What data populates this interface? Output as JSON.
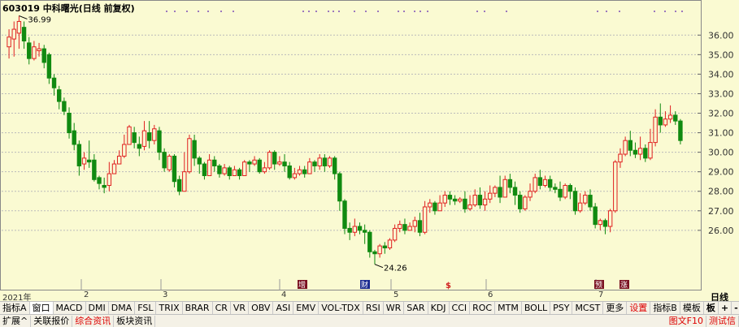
{
  "title": "603019 中科曙光(日线 前复权)",
  "chart_data": {
    "type": "candlestick",
    "y_ticks": [
      "36.00",
      "35.00",
      "34.00",
      "33.00",
      "32.00",
      "31.00",
      "30.00",
      "29.00",
      "28.00",
      "27.00",
      "26.00"
    ],
    "ylim": [
      23.5,
      37.3
    ],
    "high_label": "36.99",
    "low_label": "24.26",
    "months": [
      "2021年",
      "2",
      "3",
      "4",
      "5",
      "6",
      "7"
    ],
    "markers": [
      "增",
      "财",
      "$",
      "预",
      "涨"
    ],
    "candles": [
      [
        35.4,
        35.9,
        34.8,
        36.3
      ],
      [
        35.8,
        36.3,
        34.9,
        36.7
      ],
      [
        36.1,
        36.7,
        35.3,
        36.99
      ],
      [
        36.4,
        35.7,
        35.3,
        36.7
      ],
      [
        35.6,
        34.8,
        34.5,
        35.9
      ],
      [
        34.8,
        35.4,
        34.7,
        35.7
      ],
      [
        35.2,
        35.3,
        34.9,
        35.6
      ],
      [
        35.3,
        34.6,
        34.3,
        35.5
      ],
      [
        35.0,
        33.8,
        33.5,
        35.1
      ],
      [
        33.8,
        33.3,
        32.9,
        34.0
      ],
      [
        33.2,
        32.6,
        32.2,
        33.4
      ],
      [
        32.6,
        32.1,
        31.9,
        32.8
      ],
      [
        32.0,
        31.0,
        30.7,
        32.3
      ],
      [
        31.1,
        30.4,
        30.1,
        31.5
      ],
      [
        30.4,
        29.3,
        28.8,
        30.6
      ],
      [
        29.4,
        29.7,
        29.1,
        30.0
      ],
      [
        29.6,
        29.5,
        29.2,
        30.6
      ],
      [
        29.6,
        28.6,
        28.5,
        29.9
      ],
      [
        28.7,
        28.4,
        28.1,
        28.8
      ],
      [
        28.3,
        28.2,
        27.9,
        28.7
      ],
      [
        28.3,
        28.9,
        28.0,
        29.5
      ],
      [
        28.9,
        29.4,
        28.9,
        29.6
      ],
      [
        29.4,
        29.8,
        29.4,
        30.1
      ],
      [
        29.8,
        30.4,
        29.7,
        30.9
      ],
      [
        30.4,
        31.3,
        30.4,
        31.4
      ],
      [
        31.0,
        30.5,
        30.2,
        31.3
      ],
      [
        30.4,
        30.2,
        29.8,
        30.8
      ],
      [
        30.3,
        31.1,
        30.1,
        31.6
      ],
      [
        31.0,
        30.6,
        30.2,
        31.6
      ],
      [
        30.6,
        31.2,
        30.4,
        31.4
      ],
      [
        31.1,
        30.0,
        29.6,
        31.3
      ],
      [
        30.0,
        29.2,
        29.0,
        30.2
      ],
      [
        29.1,
        29.8,
        29.0,
        29.9
      ],
      [
        29.8,
        28.5,
        28.2,
        29.9
      ],
      [
        28.6,
        28.0,
        27.8,
        28.8
      ],
      [
        28.0,
        29.0,
        28.0,
        30.0
      ],
      [
        29.0,
        30.7,
        28.9,
        30.9
      ],
      [
        30.6,
        29.7,
        29.3,
        30.9
      ],
      [
        29.7,
        29.4,
        28.9,
        29.8
      ],
      [
        29.4,
        28.8,
        28.6,
        29.5
      ],
      [
        28.8,
        29.6,
        28.8,
        29.9
      ],
      [
        29.6,
        29.3,
        29.0,
        29.8
      ],
      [
        29.3,
        28.9,
        28.7,
        29.4
      ],
      [
        28.9,
        29.2,
        28.8,
        29.4
      ],
      [
        29.2,
        28.8,
        28.6,
        29.3
      ],
      [
        28.8,
        29.1,
        28.8,
        29.3
      ],
      [
        29.1,
        28.8,
        28.6,
        29.2
      ],
      [
        28.8,
        29.5,
        28.8,
        29.6
      ],
      [
        29.5,
        29.4,
        29.0,
        29.6
      ],
      [
        29.4,
        29.6,
        29.3,
        29.8
      ],
      [
        29.6,
        29.0,
        28.9,
        29.7
      ],
      [
        29.0,
        29.2,
        28.9,
        29.5
      ],
      [
        29.2,
        30.0,
        29.1,
        30.1
      ],
      [
        30.0,
        29.4,
        29.1,
        30.1
      ],
      [
        29.4,
        29.5,
        29.3,
        29.8
      ],
      [
        29.5,
        29.3,
        29.0,
        29.9
      ],
      [
        29.3,
        28.7,
        28.6,
        29.5
      ],
      [
        28.7,
        28.9,
        28.6,
        29.2
      ],
      [
        28.9,
        29.1,
        28.8,
        29.3
      ],
      [
        29.1,
        28.9,
        28.7,
        29.3
      ],
      [
        28.9,
        29.5,
        28.9,
        29.7
      ],
      [
        29.5,
        29.3,
        29.0,
        29.6
      ],
      [
        29.3,
        29.7,
        29.1,
        29.9
      ],
      [
        29.7,
        29.3,
        29.0,
        29.9
      ],
      [
        29.3,
        29.7,
        29.2,
        29.8
      ],
      [
        29.7,
        28.9,
        28.6,
        29.8
      ],
      [
        28.9,
        27.5,
        27.0,
        29.0
      ],
      [
        27.5,
        26.1,
        25.8,
        27.6
      ],
      [
        26.1,
        25.9,
        25.5,
        26.4
      ],
      [
        25.9,
        26.2,
        25.7,
        26.6
      ],
      [
        26.2,
        26.0,
        25.8,
        26.4
      ],
      [
        26.0,
        25.9,
        25.3,
        26.3
      ],
      [
        25.9,
        24.9,
        24.6,
        26.0
      ],
      [
        24.9,
        24.8,
        24.26,
        25.0
      ],
      [
        24.8,
        25.2,
        24.6,
        25.3
      ],
      [
        25.2,
        25.1,
        24.8,
        25.4
      ],
      [
        25.1,
        25.5,
        25.0,
        25.6
      ],
      [
        25.5,
        26.1,
        25.4,
        26.3
      ],
      [
        26.1,
        26.3,
        25.9,
        26.5
      ],
      [
        26.3,
        26.0,
        25.8,
        26.6
      ],
      [
        26.0,
        26.2,
        26.0,
        26.4
      ],
      [
        26.2,
        26.5,
        25.9,
        26.7
      ],
      [
        26.5,
        25.9,
        25.7,
        26.9
      ],
      [
        25.9,
        27.2,
        25.8,
        27.5
      ],
      [
        27.2,
        27.4,
        26.9,
        27.6
      ],
      [
        27.4,
        27.0,
        26.8,
        27.5
      ],
      [
        27.0,
        27.4,
        27.0,
        27.8
      ],
      [
        27.4,
        27.8,
        27.2,
        28.0
      ],
      [
        27.8,
        27.6,
        27.3,
        28.0
      ],
      [
        27.6,
        27.5,
        27.3,
        27.8
      ],
      [
        27.5,
        27.6,
        27.4,
        27.7
      ],
      [
        27.6,
        27.1,
        26.9,
        28.0
      ],
      [
        27.1,
        27.3,
        27.0,
        27.8
      ],
      [
        27.3,
        27.8,
        27.2,
        28.1
      ],
      [
        27.8,
        27.3,
        27.1,
        28.2
      ],
      [
        27.3,
        27.6,
        27.0,
        28.0
      ],
      [
        27.6,
        27.9,
        27.4,
        28.3
      ],
      [
        27.9,
        28.2,
        27.7,
        28.3
      ],
      [
        28.2,
        27.7,
        27.4,
        28.8
      ],
      [
        27.7,
        28.6,
        27.7,
        28.8
      ],
      [
        28.6,
        28.2,
        27.9,
        28.9
      ],
      [
        28.2,
        27.8,
        27.3,
        28.5
      ],
      [
        27.8,
        27.1,
        26.9,
        28.0
      ],
      [
        27.1,
        27.7,
        27.0,
        27.8
      ],
      [
        27.7,
        28.0,
        27.5,
        28.4
      ],
      [
        28.0,
        28.7,
        27.9,
        28.9
      ],
      [
        28.7,
        28.3,
        28.1,
        29.1
      ],
      [
        28.3,
        28.6,
        28.2,
        28.8
      ],
      [
        28.6,
        28.2,
        28.0,
        28.8
      ],
      [
        28.2,
        28.1,
        27.9,
        28.4
      ],
      [
        28.1,
        27.7,
        27.5,
        28.5
      ],
      [
        27.7,
        28.3,
        27.6,
        28.4
      ],
      [
        28.3,
        28.0,
        27.6,
        28.4
      ],
      [
        28.0,
        27.0,
        26.8,
        28.2
      ],
      [
        27.0,
        27.4,
        26.9,
        27.9
      ],
      [
        27.4,
        27.8,
        27.3,
        28.0
      ],
      [
        27.8,
        27.2,
        27.0,
        28.1
      ],
      [
        27.2,
        26.3,
        26.1,
        27.4
      ],
      [
        26.3,
        26.5,
        26.0,
        26.6
      ],
      [
        26.5,
        26.2,
        25.8,
        26.6
      ],
      [
        26.2,
        27.0,
        25.9,
        27.1
      ],
      [
        27.0,
        29.5,
        26.9,
        29.6
      ],
      [
        29.5,
        29.9,
        29.2,
        30.2
      ],
      [
        29.9,
        30.6,
        29.8,
        30.8
      ],
      [
        30.6,
        30.1,
        29.8,
        31.1
      ],
      [
        30.1,
        29.9,
        29.7,
        30.5
      ],
      [
        29.9,
        30.2,
        29.6,
        30.8
      ],
      [
        30.2,
        29.7,
        29.5,
        30.4
      ],
      [
        29.7,
        30.5,
        29.6,
        31.2
      ],
      [
        30.5,
        31.8,
        30.3,
        32.2
      ],
      [
        31.8,
        31.4,
        31.0,
        32.5
      ],
      [
        31.4,
        31.7,
        31.3,
        32.1
      ],
      [
        31.7,
        31.9,
        31.5,
        32.4
      ],
      [
        31.9,
        31.6,
        31.4,
        32.1
      ],
      [
        31.6,
        30.6,
        30.4,
        31.7
      ]
    ],
    "dots_note": "rights markers"
  },
  "dates": {
    "d0": "2021年",
    "d1": "2",
    "d2": "3",
    "d3": "4",
    "d4": "5",
    "d5": "6",
    "d6": "7"
  },
  "toolbar": {
    "items": [
      "指标A",
      "窗口",
      "MACD",
      "DMI",
      "DMA",
      "FSL",
      "TRIX",
      "BRAR",
      "CR",
      "VR",
      "OBV",
      "ASI",
      "EMV",
      "VOL-TDX",
      "RSI",
      "WR",
      "SAR",
      "KDJ",
      "CCI",
      "ROC",
      "MTM",
      "BOLL",
      "PSY",
      "MCST",
      "更多",
      "设置"
    ],
    "right_a": "指标B",
    "right_b": "模板"
  },
  "bottom": {
    "items": [
      "扩展^",
      "关联报价",
      "综合资讯",
      "板块资讯"
    ],
    "f10": "图文F10",
    "right": "测试信"
  },
  "panel": {
    "period": "日线",
    "plus": "+",
    "minus": "-",
    "board": "板"
  }
}
